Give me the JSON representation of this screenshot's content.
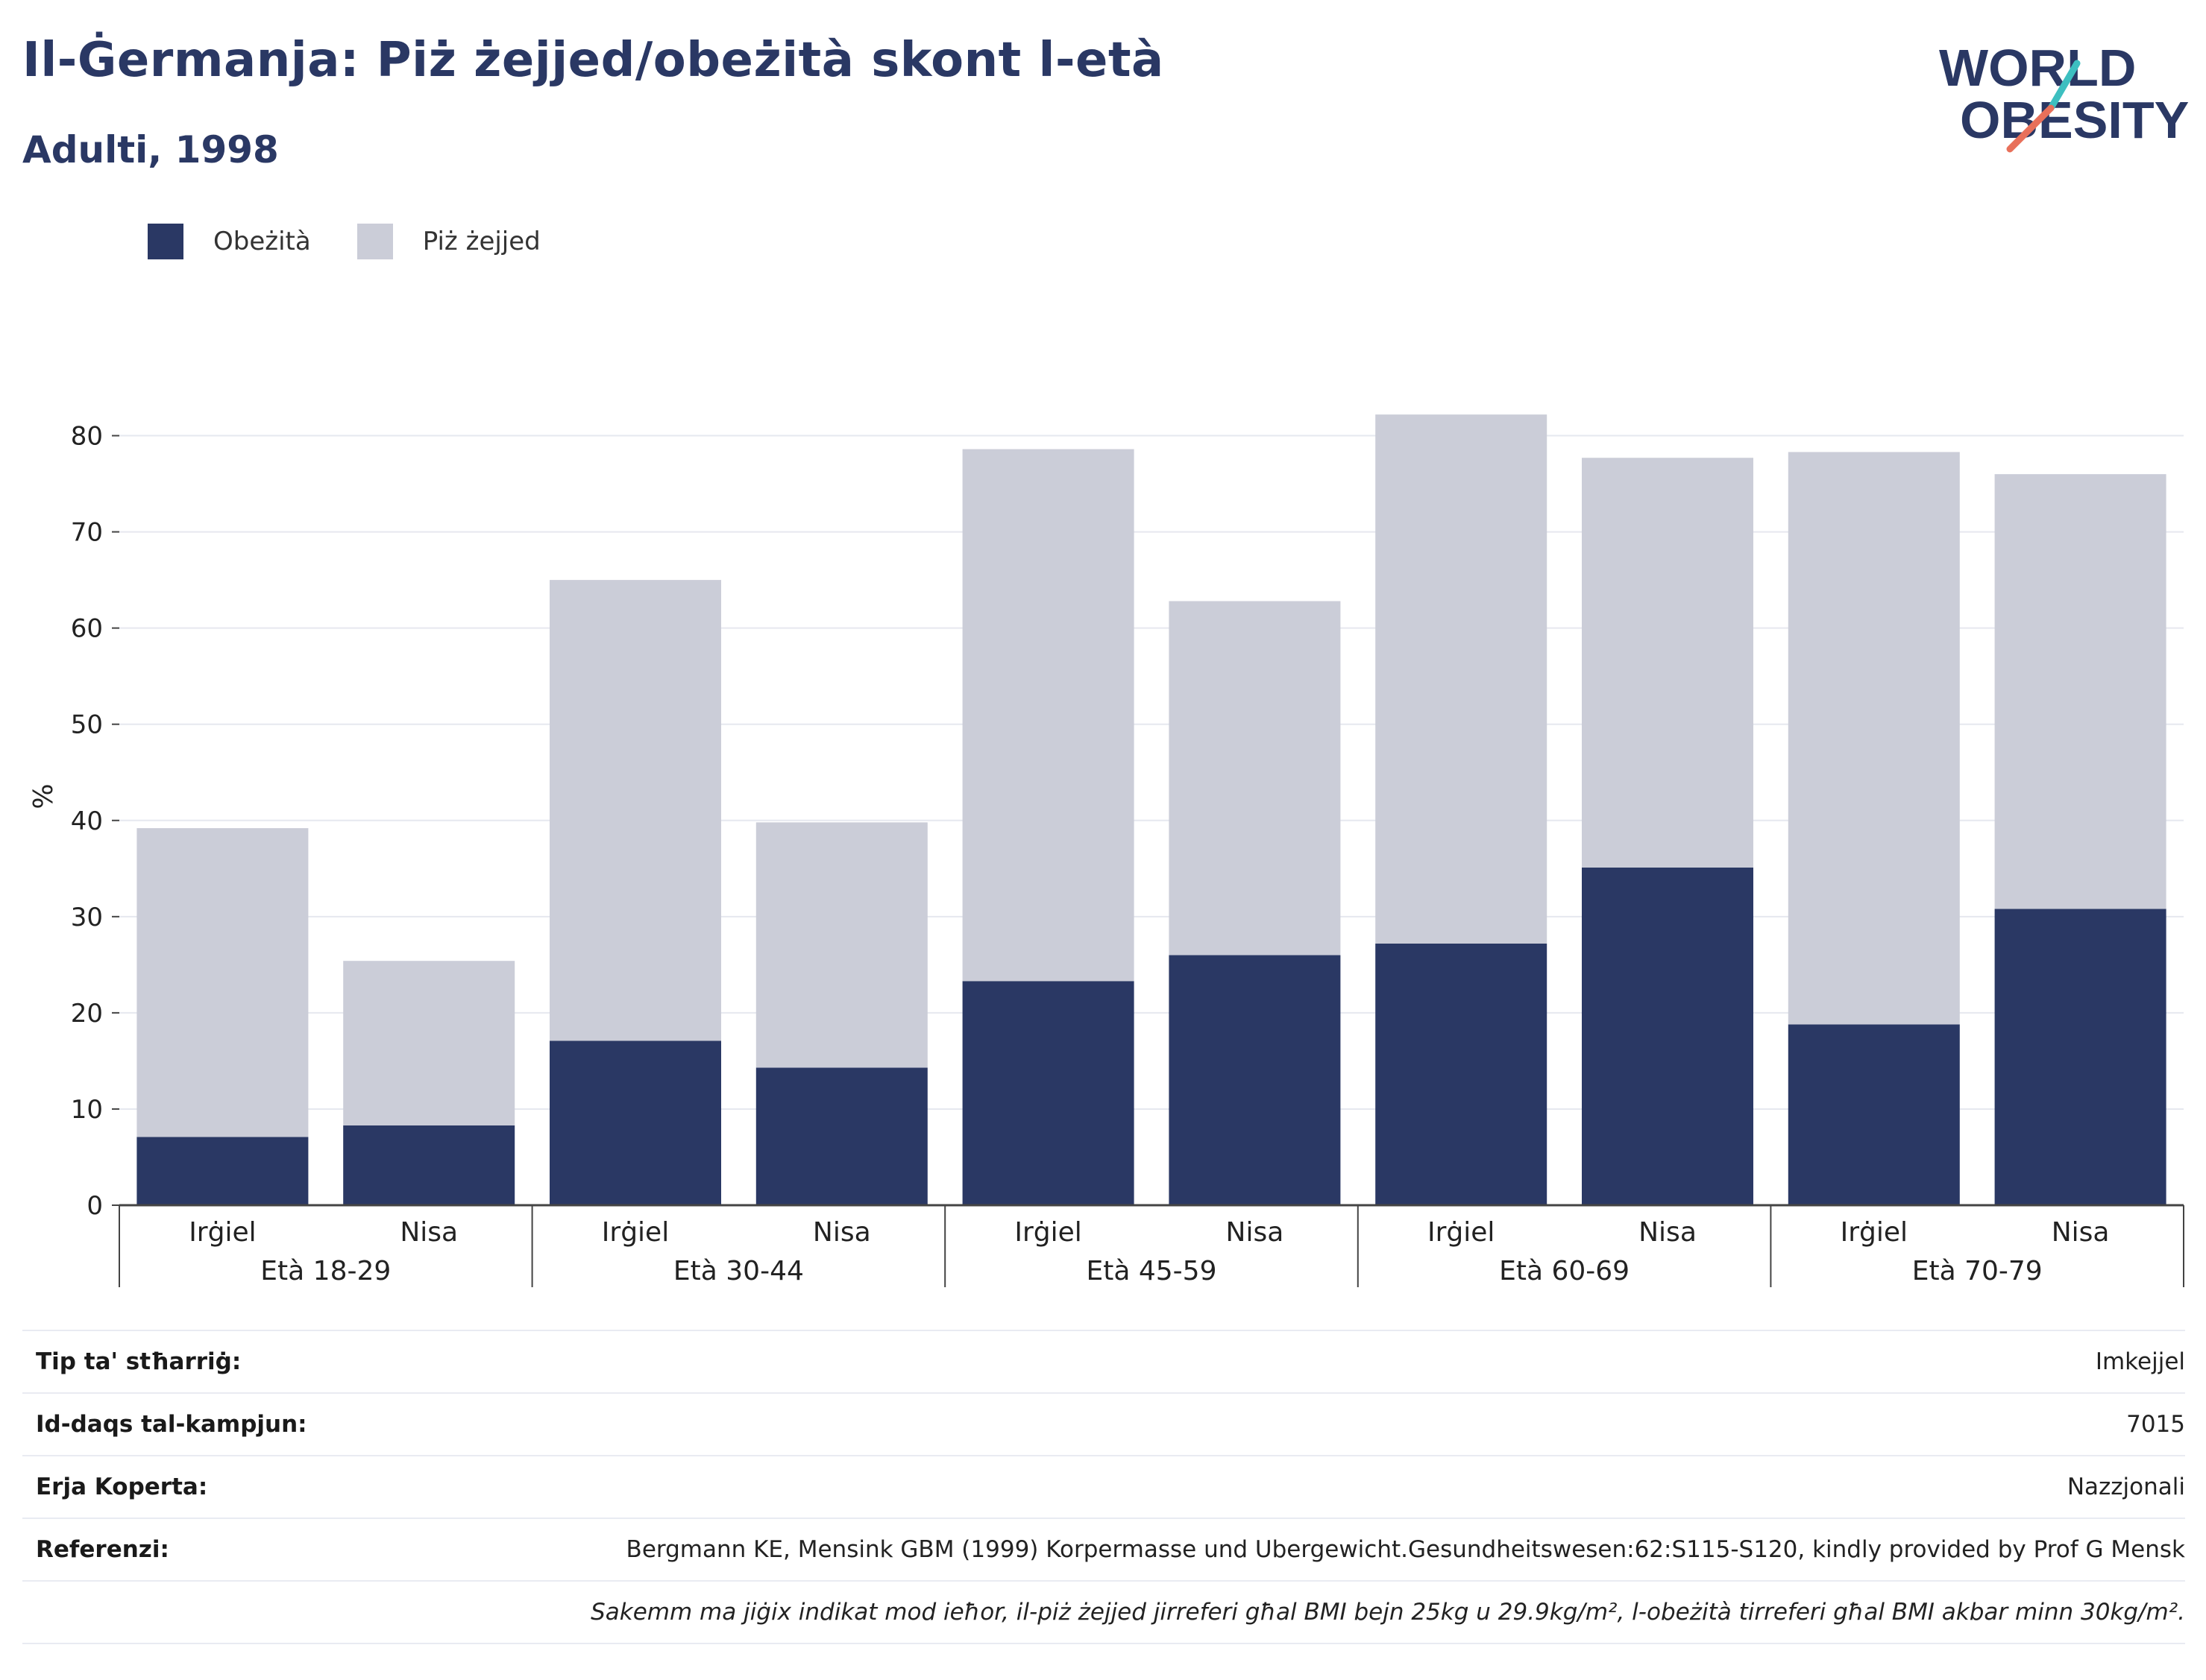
{
  "header": {
    "title": "Il-Ġermanja: Piż żejjed/obeżità skont l-età",
    "subtitle": "Adulti, 1998"
  },
  "logo": {
    "line1": "WORLD",
    "line2": "OBESITY",
    "accent": "#e8705a",
    "accent2": "#3dbfc0"
  },
  "colors": {
    "obesity": "#2a3864",
    "overweight": "#cbcdd8",
    "grid": "#e6e8ef",
    "axis": "#444444"
  },
  "legend": [
    {
      "label": "Obeżità",
      "color": "#2a3864"
    },
    {
      "label": "Piż żejjed",
      "color": "#cbcdd8"
    }
  ],
  "chart_data": {
    "type": "bar",
    "stacked": true,
    "ylabel": "%",
    "ylim": [
      0,
      85
    ],
    "yticks": [
      0,
      10,
      20,
      30,
      40,
      50,
      60,
      70,
      80
    ],
    "grid": true,
    "legend_position": "top-left",
    "groups": [
      "Età 18-29",
      "Età 30-44",
      "Età 45-59",
      "Età 60-69",
      "Età 70-79"
    ],
    "categories": [
      "Irġiel",
      "Nisa",
      "Irġiel",
      "Nisa",
      "Irġiel",
      "Nisa",
      "Irġiel",
      "Nisa",
      "Irġiel",
      "Nisa"
    ],
    "series": [
      {
        "name": "Obeżità",
        "values": [
          7.1,
          8.3,
          17.1,
          14.3,
          23.3,
          26.0,
          27.2,
          35.1,
          18.8,
          30.8
        ]
      },
      {
        "name": "Piż żejjed",
        "values": [
          32.1,
          17.1,
          47.9,
          25.5,
          55.3,
          36.8,
          55.0,
          42.6,
          59.5,
          45.2
        ]
      }
    ]
  },
  "info_table": [
    {
      "key": "Tip ta' stħarriġ:",
      "value": "Imkejjel"
    },
    {
      "key": "Id-daqs tal-kampjun:",
      "value": "7015"
    },
    {
      "key": "Erja Koperta:",
      "value": "Nazzjonali"
    },
    {
      "key": "Referenzi:",
      "value": "Bergmann KE, Mensink GBM (1999) Korpermasse und Ubergewicht.Gesundheitswesen:62:S115-S120, kindly provided by Prof G Mensk"
    }
  ],
  "note": "Sakemm ma jiġix indikat mod ieħor, il-piż żejjed jirreferi għal BMI bejn 25kg u 29.9kg/m², l-obeżità tirreferi għal BMI akbar minn 30kg/m²."
}
